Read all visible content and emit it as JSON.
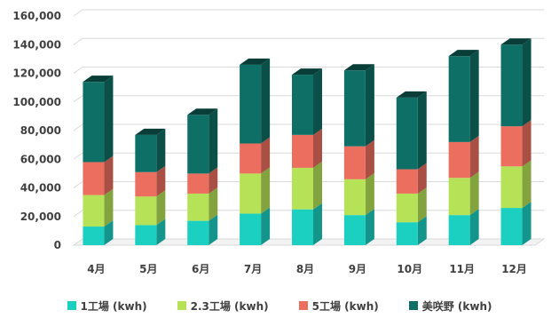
{
  "chart_data": {
    "type": "bar",
    "stacked": true,
    "style": "3d",
    "categories": [
      "4月",
      "5月",
      "6月",
      "7月",
      "8月",
      "9月",
      "10月",
      "11月",
      "12月"
    ],
    "series": [
      {
        "name": "1工場 (kwh)",
        "color": "#1bcfc1",
        "values": [
          13000,
          14000,
          17000,
          22000,
          25000,
          21000,
          16000,
          21000,
          26000
        ]
      },
      {
        "name": "2.3工場 (kwh)",
        "color": "#b5e256",
        "values": [
          22000,
          20000,
          19000,
          28000,
          29000,
          25000,
          20000,
          26000,
          29000
        ]
      },
      {
        "name": "5工場 (kwh)",
        "color": "#ec6e5e",
        "values": [
          23000,
          17000,
          14000,
          21000,
          23000,
          23000,
          17000,
          25000,
          28000
        ]
      },
      {
        "name": "美咲野 (kwh)",
        "color": "#0e6f66",
        "values": [
          56000,
          26000,
          41000,
          55000,
          42000,
          53000,
          50000,
          60000,
          57000
        ]
      }
    ],
    "y_ticks": [
      "0",
      "20,000",
      "40,000",
      "60,000",
      "80,000",
      "100,000",
      "120,000",
      "140,000",
      "160,000"
    ],
    "ylim": [
      0,
      160000
    ],
    "grid": true,
    "legend": "bottom",
    "title": "",
    "xlabel": "",
    "ylabel": ""
  }
}
